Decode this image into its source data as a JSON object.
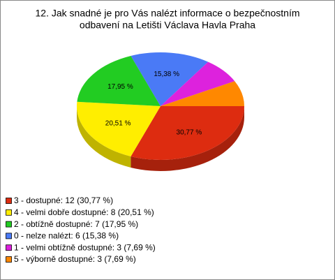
{
  "chart_data": {
    "type": "pie3d",
    "title": [
      "12. Jak snadné je pro Vás nalézt informace o bezpečnostním",
      "odbavení na Letišti Václava Havla Praha"
    ],
    "categories": [
      "3 - dostupné: 12 (30,77 %)",
      "4 - velmi dobře dostupné: 8 (20,51 %)",
      "2 - obtížně dostupné: 7 (17,95 %)",
      "0 - nelze nalézt: 6 (15,38 %)",
      "1 - velmi obtížně dostupné: 3 (7,69 %)",
      "5 - výborně dostupné: 3 (7,69 %)"
    ],
    "values": [
      30.77,
      20.51,
      17.95,
      15.38,
      7.69,
      7.69
    ],
    "value_labels": [
      "30,77 %",
      "20,51 %",
      "17,95 %",
      "15,38 %",
      null,
      null
    ],
    "colors": [
      "#dd2c10",
      "#ffee00",
      "#22cc22",
      "#4a7af6",
      "#dd22dd",
      "#ff8800"
    ]
  }
}
